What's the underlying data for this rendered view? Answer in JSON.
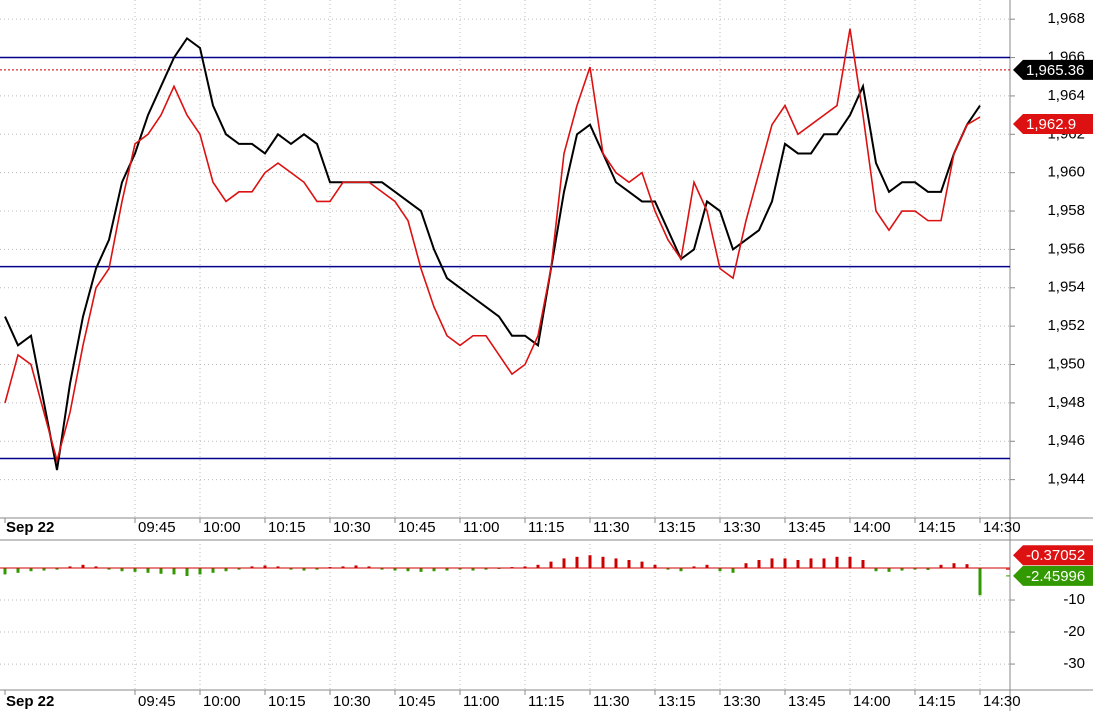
{
  "chart_data": [
    {
      "type": "line",
      "series": [
        {
          "color": "#000000",
          "values": [
            1952.5,
            1951,
            1951.5,
            1948,
            1944.5,
            1949,
            1952.5,
            1955,
            1956.5,
            1959.5,
            1961,
            1963,
            1964.5,
            1966,
            1967,
            1966.5,
            1963.5,
            1962,
            1961.5,
            1961.5,
            1961,
            1962,
            1961.5,
            1962,
            1961.5,
            1959.5,
            1959.5,
            1959.5,
            1959.5,
            1959.5,
            1959,
            1958.5,
            1958,
            1956,
            1954.5,
            1954,
            1953.5,
            1953,
            1952.5,
            1951.5,
            1951.5,
            1951,
            1955,
            1959,
            1962,
            1962.5,
            1961,
            1959.5,
            1959,
            1958.5,
            1958.5,
            1957,
            1955.5,
            1956,
            1958.5,
            1958,
            1956,
            1956.5,
            1957,
            1958.5,
            1961.5,
            1961,
            1961,
            1962,
            1962,
            1963,
            1964.5,
            1960.5,
            1959,
            1959.5,
            1959.5,
            1959,
            1959,
            1961,
            1962.5,
            1963.5
          ]
        },
        {
          "color": "#dd1111",
          "values": [
            1948,
            1950.5,
            1950,
            1947.5,
            1945,
            1947.5,
            1951,
            1954,
            1955,
            1958.5,
            1961.5,
            1962,
            1963,
            1964.5,
            1963,
            1962,
            1959.5,
            1958.5,
            1959,
            1959,
            1960,
            1960.5,
            1960,
            1959.5,
            1958.5,
            1958.5,
            1959.5,
            1959.5,
            1959.5,
            1959,
            1958.5,
            1957.5,
            1955,
            1953,
            1951.5,
            1951,
            1951.5,
            1951.5,
            1950.5,
            1949.5,
            1950,
            1951.5,
            1955,
            1961,
            1963.5,
            1965.5,
            1961,
            1960,
            1959.5,
            1960,
            1958,
            1956.5,
            1955.5,
            1959.5,
            1958,
            1955,
            1954.5,
            1957.5,
            1960,
            1962.5,
            1963.5,
            1962,
            1962.5,
            1963,
            1963.5,
            1967.5,
            1963,
            1958,
            1957,
            1958,
            1958,
            1957.5,
            1957.5,
            1961,
            1962.5,
            1962.9
          ]
        }
      ],
      "hlines": [
        {
          "value": 1966,
          "color": "#00008b"
        },
        {
          "value": 1955.1,
          "color": "#00008b"
        },
        {
          "value": 1945.1,
          "color": "#00008b"
        }
      ],
      "ref_line": {
        "value": 1965.36,
        "label": "1,965.36",
        "color": "#cc0000"
      },
      "last_label": {
        "value": 1962.9,
        "label": "1,962.9",
        "color": "#dd1111"
      },
      "ylim": [
        1942,
        1969
      ],
      "yticks": [
        {
          "value": 1944,
          "label": "1,944"
        },
        {
          "value": 1946,
          "label": "1,946"
        },
        {
          "value": 1948,
          "label": "1,948"
        },
        {
          "value": 1950,
          "label": "1,950"
        },
        {
          "value": 1952,
          "label": "1,952"
        },
        {
          "value": 1954,
          "label": "1,954"
        },
        {
          "value": 1956,
          "label": "1,956"
        },
        {
          "value": 1958,
          "label": "1,958"
        },
        {
          "value": 1960,
          "label": "1,960"
        },
        {
          "value": 1962,
          "label": "1,962"
        },
        {
          "value": 1964,
          "label": "1,964"
        },
        {
          "value": 1966,
          "label": "1,966"
        },
        {
          "value": 1968,
          "label": "1,968"
        }
      ],
      "xticks": [
        {
          "value": 0,
          "label": "Sep 22"
        },
        {
          "value": 10,
          "label": "09:45"
        },
        {
          "value": 15,
          "label": "10:00"
        },
        {
          "value": 20,
          "label": "10:15"
        },
        {
          "value": 25,
          "label": "10:30"
        },
        {
          "value": 30,
          "label": "10:45"
        },
        {
          "value": 35,
          "label": "11:00"
        },
        {
          "value": 40,
          "label": "11:15"
        },
        {
          "value": 45,
          "label": "11:30"
        },
        {
          "value": 50,
          "label": "13:15"
        },
        {
          "value": 55,
          "label": "13:30"
        },
        {
          "value": 60,
          "label": "13:45"
        },
        {
          "value": 65,
          "label": "14:00"
        },
        {
          "value": 70,
          "label": "14:15"
        },
        {
          "value": 75,
          "label": "14:30"
        }
      ],
      "grid": true
    },
    {
      "type": "bar",
      "up_color": "#cc0000",
      "down_color": "#339900",
      "values": [
        -2,
        -1.5,
        -1,
        -0.8,
        -0.5,
        0.5,
        1,
        0.5,
        -0.5,
        -1,
        -1.2,
        -1.5,
        -1.8,
        -2,
        -2.5,
        -2,
        -1.5,
        -1,
        -0.5,
        0.5,
        0.8,
        0.5,
        -0.5,
        -0.8,
        -0.5,
        0.3,
        0.5,
        0.8,
        0.5,
        -0.5,
        -0.8,
        -1,
        -1.2,
        -1,
        -0.8,
        -0.5,
        -0.8,
        -0.5,
        -0.3,
        0.3,
        0.5,
        1,
        2,
        3,
        3.5,
        4,
        3.5,
        3,
        2.5,
        2,
        1,
        -0.5,
        -1,
        0.5,
        1,
        -1,
        -1.5,
        1.5,
        2.5,
        3,
        3,
        2.5,
        3,
        3,
        3.5,
        3.5,
        2.5,
        -1,
        -1.2,
        -0.8,
        -0.5,
        -0.6,
        1,
        1.5,
        1.2,
        -8.5
      ],
      "markers": [
        {
          "value": -0.37052,
          "label": "-0.37052",
          "color": "#dd1111"
        },
        {
          "value": -2.45996,
          "label": "-2.45996",
          "color": "#339900"
        }
      ],
      "ylim": [
        -38.1,
        8.75
      ],
      "yticks": [
        -10,
        -20,
        -30
      ],
      "xticks": [
        {
          "value": 0,
          "label": "Sep 22"
        },
        {
          "value": 10,
          "label": "09:45"
        },
        {
          "value": 15,
          "label": "10:00"
        },
        {
          "value": 20,
          "label": "10:15"
        },
        {
          "value": 25,
          "label": "10:30"
        },
        {
          "value": 30,
          "label": "10:45"
        },
        {
          "value": 35,
          "label": "11:00"
        },
        {
          "value": 40,
          "label": "11:15"
        },
        {
          "value": 45,
          "label": "11:30"
        },
        {
          "value": 50,
          "label": "13:15"
        },
        {
          "value": 55,
          "label": "13:30"
        },
        {
          "value": 60,
          "label": "13:45"
        },
        {
          "value": 65,
          "label": "14:00"
        },
        {
          "value": 70,
          "label": "14:15"
        },
        {
          "value": 75,
          "label": "14:30"
        }
      ],
      "grid": true
    }
  ]
}
